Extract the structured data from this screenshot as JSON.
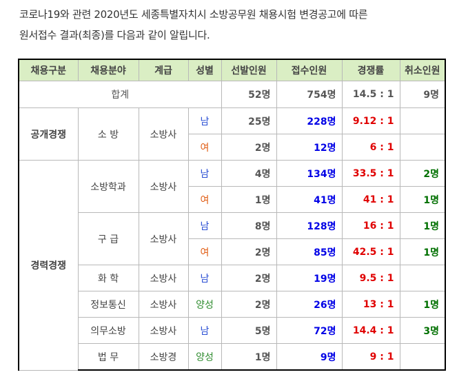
{
  "intro": {
    "line1": "코로나19와 관련 2020년도 세종특별자치시 소방공무원 채용시험 변경공고에 따른",
    "line2": "원서접수 결과(최종)를 다음과 같이 알립니다."
  },
  "table": {
    "headers": [
      "채용구분",
      "채용분야",
      "계급",
      "성별",
      "선발인원",
      "접수인원",
      "경쟁률",
      "취소인원"
    ],
    "total": {
      "label": "합계",
      "selected": "52명",
      "applied": "754명",
      "ratio": "14.5 : 1",
      "cancel": "9명"
    },
    "rows": [
      {
        "group": "공개경쟁",
        "field": "소 방",
        "rank": "소방사",
        "gender": "남",
        "selected": "25명",
        "applied": "228명",
        "ratio": "9.12 : 1",
        "cancel": ""
      },
      {
        "group": "",
        "field": "",
        "rank": "",
        "gender": "여",
        "selected": "2명",
        "applied": "12명",
        "ratio": "6 : 1",
        "cancel": ""
      },
      {
        "group": "경력경쟁",
        "field": "소방학과",
        "rank": "소방사",
        "gender": "남",
        "selected": "4명",
        "applied": "134명",
        "ratio": "33.5 : 1",
        "cancel": "2명"
      },
      {
        "group": "",
        "field": "",
        "rank": "",
        "gender": "여",
        "selected": "1명",
        "applied": "41명",
        "ratio": "41 : 1",
        "cancel": "1명"
      },
      {
        "group": "",
        "field": "구 급",
        "rank": "소방사",
        "gender": "남",
        "selected": "8명",
        "applied": "128명",
        "ratio": "16 : 1",
        "cancel": "1명"
      },
      {
        "group": "",
        "field": "",
        "rank": "",
        "gender": "여",
        "selected": "2명",
        "applied": "85명",
        "ratio": "42.5 : 1",
        "cancel": "1명"
      },
      {
        "group": "",
        "field": "화 학",
        "rank": "소방사",
        "gender": "남",
        "selected": "2명",
        "applied": "19명",
        "ratio": "9.5 : 1",
        "cancel": ""
      },
      {
        "group": "",
        "field": "정보통신",
        "rank": "소방사",
        "gender": "양성",
        "selected": "2명",
        "applied": "26명",
        "ratio": "13 : 1",
        "cancel": "1명"
      },
      {
        "group": "",
        "field": "의무소방",
        "rank": "소방사",
        "gender": "남",
        "selected": "5명",
        "applied": "72명",
        "ratio": "14.4 : 1",
        "cancel": "3명"
      },
      {
        "group": "",
        "field": "법 무",
        "rank": "소방경",
        "gender": "양성",
        "selected": "1명",
        "applied": "9명",
        "ratio": "9 : 1",
        "cancel": ""
      }
    ]
  },
  "colors": {
    "header_bg": "#daeec4",
    "applied": "#0000e6",
    "ratio": "#e00000",
    "cancel": "#007000",
    "male": "#2a4fd4",
    "female": "#e05a10",
    "both": "#2e8b2e"
  }
}
